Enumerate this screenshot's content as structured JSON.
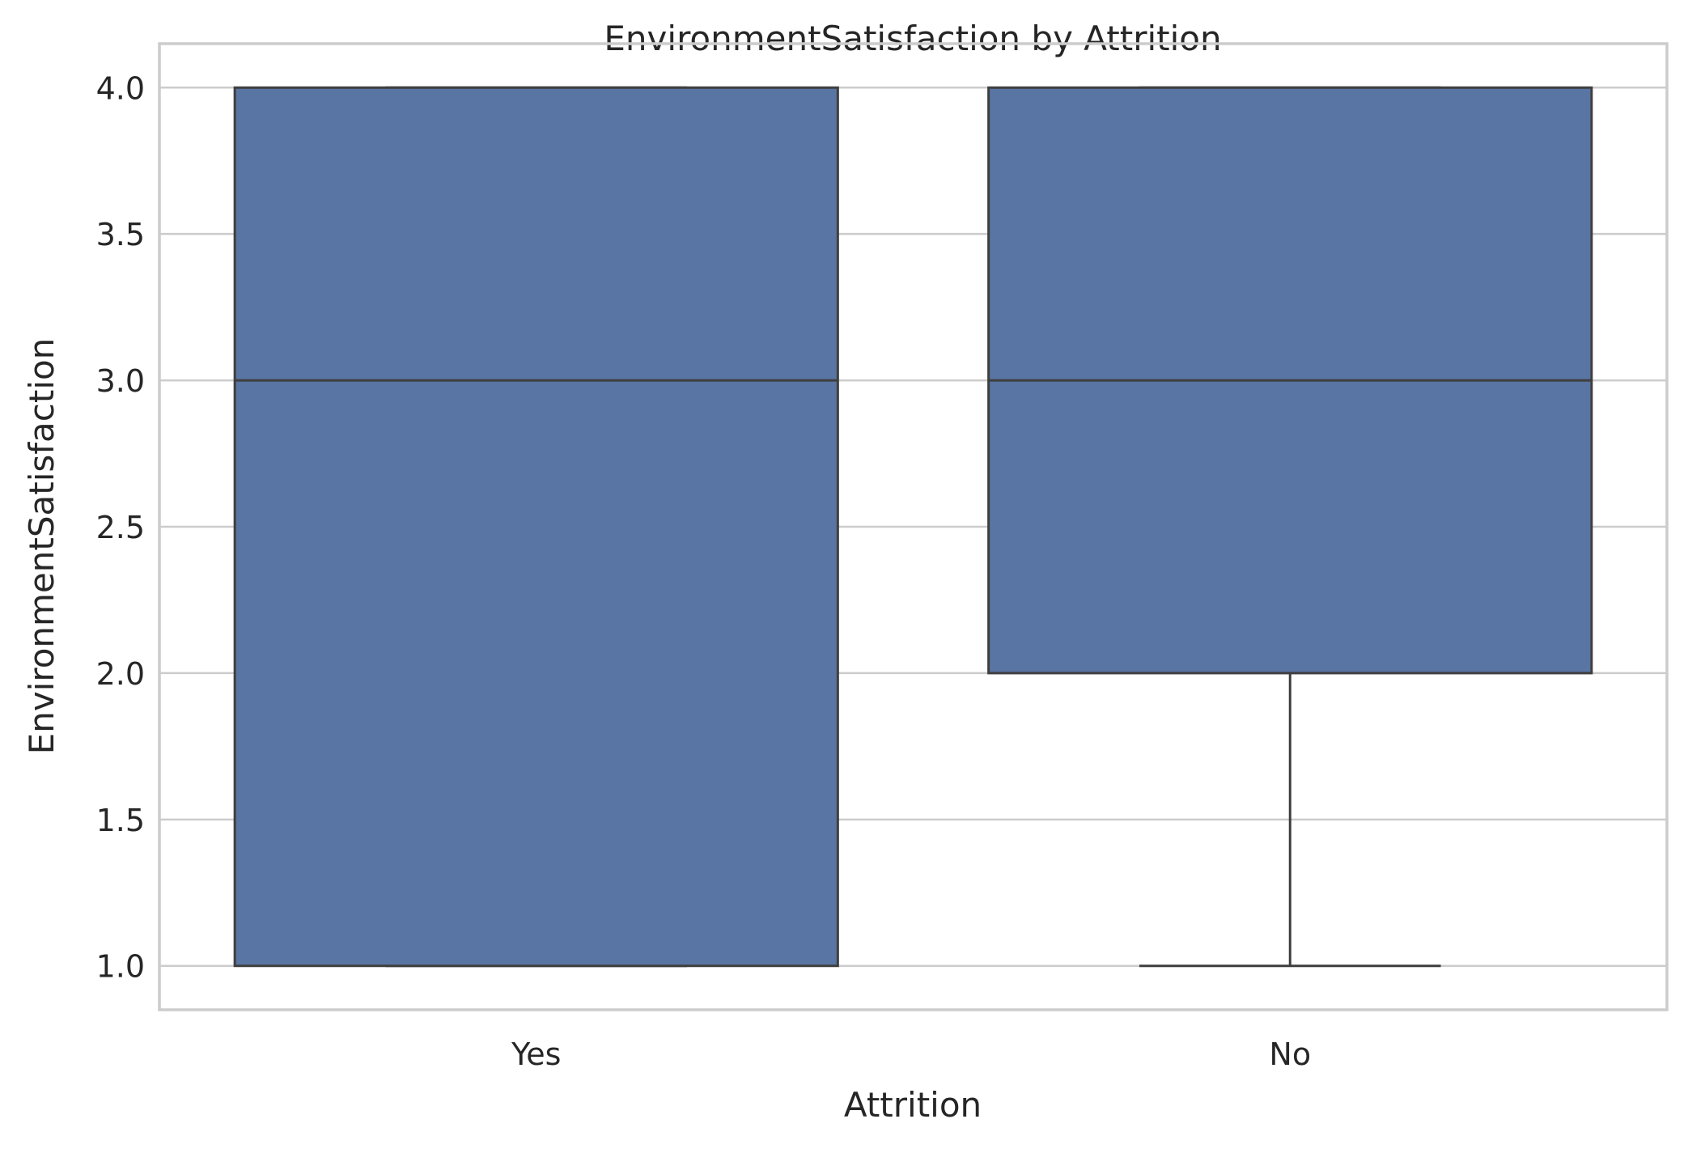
{
  "chart_data": {
    "type": "box",
    "title": "EnvironmentSatisfaction by Attrition",
    "xlabel": "Attrition",
    "ylabel": "EnvironmentSatisfaction",
    "categories": [
      "Yes",
      "No"
    ],
    "boxes": [
      {
        "category": "Yes",
        "whisker_low": 1.0,
        "q1": 1.0,
        "median": 3.0,
        "q3": 4.0,
        "whisker_high": 4.0
      },
      {
        "category": "No",
        "whisker_low": 1.0,
        "q1": 2.0,
        "median": 3.0,
        "q3": 4.0,
        "whisker_high": 4.0
      }
    ],
    "ylim": [
      0.85,
      4.15
    ],
    "yticks": [
      1.0,
      1.5,
      2.0,
      2.5,
      3.0,
      3.5,
      4.0
    ],
    "ytick_labels": [
      "1.0",
      "1.5",
      "2.0",
      "2.5",
      "3.0",
      "3.5",
      "4.0"
    ],
    "grid": true,
    "legend": "none",
    "colors": {
      "box_fill": "#5975a4",
      "box_edge": "#3f3f3f",
      "grid": "#cccccc",
      "spine": "#cccccc",
      "text": "#262626"
    }
  }
}
